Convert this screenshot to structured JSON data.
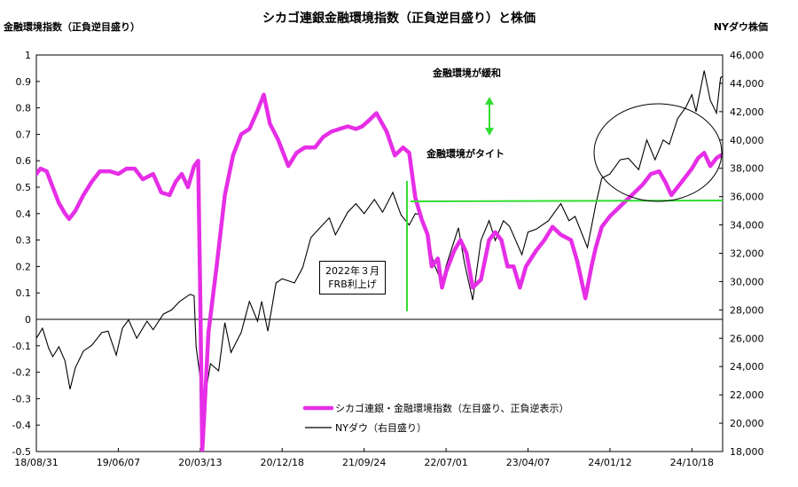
{
  "chart_data": {
    "type": "line",
    "title": "シカゴ連銀金融環境指数（正負逆目盛り）と株価",
    "ylabel": "金融環境指数（正負逆目盛り）",
    "y2label": "NYダウ株価",
    "x_ticks": [
      "18/08/31",
      "19/06/07",
      "20/03/13",
      "20/12/18",
      "21/09/24",
      "22/07/01",
      "23/04/07",
      "24/01/12",
      "24/10/18"
    ],
    "x_range": [
      "2018-08-31",
      "2025-01-31"
    ],
    "ylim": [
      -0.5,
      1
    ],
    "y_ticks": [
      -0.5,
      -0.4,
      -0.3,
      -0.2,
      -0.1,
      0,
      0.1,
      0.2,
      0.3,
      0.4,
      0.5,
      0.6,
      0.7,
      0.8,
      0.9,
      1
    ],
    "y_tick_labels": [
      "-0.5",
      "-0.4",
      "-0.3",
      "-0.2",
      "-0.1",
      "0",
      "0.1",
      "0.2",
      "0.3",
      "0.4",
      "0.5",
      "0.6",
      "0.7",
      "0.8",
      "0.9",
      "1"
    ],
    "y2lim": [
      18000,
      46000
    ],
    "y2_ticks": [
      18000,
      20000,
      22000,
      24000,
      26000,
      28000,
      30000,
      32000,
      34000,
      36000,
      38000,
      40000,
      42000,
      44000,
      46000
    ],
    "y2_tick_labels": [
      "18,000",
      "20,000",
      "22,000",
      "24,000",
      "26,000",
      "28,000",
      "30,000",
      "32,000",
      "34,000",
      "36,000",
      "38,000",
      "40,000",
      "42,000",
      "44,000",
      "46,000"
    ],
    "series": [
      {
        "name": "シカゴ連銀・金融環境指数（左目盛り、正負逆表示）",
        "color": "#e62ee6",
        "axis": "left",
        "points": [
          [
            "2018-08-31",
            0.55
          ],
          [
            "2018-09-14",
            0.57
          ],
          [
            "2018-10-05",
            0.56
          ],
          [
            "2018-10-26",
            0.5
          ],
          [
            "2018-11-16",
            0.44
          ],
          [
            "2018-12-07",
            0.4
          ],
          [
            "2018-12-21",
            0.38
          ],
          [
            "2019-01-11",
            0.41
          ],
          [
            "2019-02-08",
            0.47
          ],
          [
            "2019-03-08",
            0.52
          ],
          [
            "2019-04-05",
            0.56
          ],
          [
            "2019-05-10",
            0.56
          ],
          [
            "2019-06-07",
            0.55
          ],
          [
            "2019-07-05",
            0.57
          ],
          [
            "2019-08-02",
            0.57
          ],
          [
            "2019-08-30",
            0.53
          ],
          [
            "2019-10-04",
            0.55
          ],
          [
            "2019-11-01",
            0.48
          ],
          [
            "2019-11-29",
            0.47
          ],
          [
            "2019-12-20",
            0.52
          ],
          [
            "2020-01-10",
            0.55
          ],
          [
            "2020-01-31",
            0.5
          ],
          [
            "2020-02-21",
            0.58
          ],
          [
            "2020-03-06",
            0.6
          ],
          [
            "2020-03-13",
            0.1
          ],
          [
            "2020-03-20",
            -0.5
          ],
          [
            "2020-03-27",
            -0.35
          ],
          [
            "2020-04-10",
            -0.05
          ],
          [
            "2020-05-08",
            0.2
          ],
          [
            "2020-06-05",
            0.47
          ],
          [
            "2020-07-03",
            0.62
          ],
          [
            "2020-07-31",
            0.7
          ],
          [
            "2020-08-28",
            0.72
          ],
          [
            "2020-09-25",
            0.79
          ],
          [
            "2020-10-16",
            0.85
          ],
          [
            "2020-11-06",
            0.74
          ],
          [
            "2020-12-04",
            0.68
          ],
          [
            "2021-01-08",
            0.58
          ],
          [
            "2021-02-05",
            0.63
          ],
          [
            "2021-03-05",
            0.65
          ],
          [
            "2021-04-09",
            0.65
          ],
          [
            "2021-05-07",
            0.69
          ],
          [
            "2021-06-04",
            0.71
          ],
          [
            "2021-07-02",
            0.72
          ],
          [
            "2021-07-30",
            0.73
          ],
          [
            "2021-08-27",
            0.72
          ],
          [
            "2021-09-17",
            0.73
          ],
          [
            "2021-10-08",
            0.75
          ],
          [
            "2021-11-05",
            0.78
          ],
          [
            "2021-12-10",
            0.71
          ],
          [
            "2022-01-07",
            0.62
          ],
          [
            "2022-02-04",
            0.65
          ],
          [
            "2022-02-25",
            0.63
          ],
          [
            "2022-03-18",
            0.46
          ],
          [
            "2022-04-08",
            0.38
          ],
          [
            "2022-04-29",
            0.32
          ],
          [
            "2022-05-13",
            0.2
          ],
          [
            "2022-06-03",
            0.23
          ],
          [
            "2022-06-17",
            0.12
          ],
          [
            "2022-07-01",
            0.18
          ],
          [
            "2022-07-29",
            0.26
          ],
          [
            "2022-08-19",
            0.3
          ],
          [
            "2022-09-09",
            0.25
          ],
          [
            "2022-09-30",
            0.12
          ],
          [
            "2022-10-28",
            0.15
          ],
          [
            "2022-11-25",
            0.3
          ],
          [
            "2022-12-16",
            0.33
          ],
          [
            "2023-01-06",
            0.3
          ],
          [
            "2023-01-27",
            0.2
          ],
          [
            "2023-02-17",
            0.2
          ],
          [
            "2023-03-10",
            0.12
          ],
          [
            "2023-03-31",
            0.2
          ],
          [
            "2023-05-05",
            0.26
          ],
          [
            "2023-06-02",
            0.3
          ],
          [
            "2023-06-30",
            0.35
          ],
          [
            "2023-07-28",
            0.32
          ],
          [
            "2023-09-01",
            0.3
          ],
          [
            "2023-09-22",
            0.22
          ],
          [
            "2023-10-20",
            0.08
          ],
          [
            "2023-11-10",
            0.2
          ],
          [
            "2023-11-24",
            0.27
          ],
          [
            "2023-12-15",
            0.35
          ],
          [
            "2024-01-12",
            0.39
          ],
          [
            "2024-02-09",
            0.42
          ],
          [
            "2024-03-08",
            0.45
          ],
          [
            "2024-04-05",
            0.48
          ],
          [
            "2024-05-03",
            0.51
          ],
          [
            "2024-05-31",
            0.55
          ],
          [
            "2024-06-28",
            0.56
          ],
          [
            "2024-07-19",
            0.52
          ],
          [
            "2024-08-09",
            0.47
          ],
          [
            "2024-08-30",
            0.5
          ],
          [
            "2024-09-20",
            0.53
          ],
          [
            "2024-10-18",
            0.57
          ],
          [
            "2024-11-08",
            0.61
          ],
          [
            "2024-11-29",
            0.63
          ],
          [
            "2024-12-20",
            0.58
          ],
          [
            "2025-01-10",
            0.61
          ],
          [
            "2025-01-24",
            0.62
          ]
        ]
      },
      {
        "name": "NYダウ（右目盛り）",
        "color": "#000000",
        "axis": "right",
        "points": [
          [
            "2018-08-31",
            26000
          ],
          [
            "2018-09-21",
            26700
          ],
          [
            "2018-10-12",
            25300
          ],
          [
            "2018-10-26",
            24700
          ],
          [
            "2018-11-16",
            25400
          ],
          [
            "2018-12-07",
            24400
          ],
          [
            "2018-12-24",
            22400
          ],
          [
            "2019-01-11",
            23900
          ],
          [
            "2019-02-08",
            25100
          ],
          [
            "2019-03-08",
            25500
          ],
          [
            "2019-04-12",
            26400
          ],
          [
            "2019-05-03",
            26500
          ],
          [
            "2019-05-31",
            24800
          ],
          [
            "2019-06-21",
            26700
          ],
          [
            "2019-07-12",
            27300
          ],
          [
            "2019-08-09",
            26000
          ],
          [
            "2019-09-13",
            27200
          ],
          [
            "2019-10-04",
            26600
          ],
          [
            "2019-11-08",
            27700
          ],
          [
            "2019-12-06",
            28000
          ],
          [
            "2020-01-03",
            28600
          ],
          [
            "2020-02-07",
            29100
          ],
          [
            "2020-02-21",
            29000
          ],
          [
            "2020-02-28",
            25400
          ],
          [
            "2020-03-13",
            23200
          ],
          [
            "2020-03-20",
            19200
          ],
          [
            "2020-03-27",
            21600
          ],
          [
            "2020-04-17",
            24200
          ],
          [
            "2020-05-15",
            23700
          ],
          [
            "2020-06-05",
            27100
          ],
          [
            "2020-06-26",
            25000
          ],
          [
            "2020-07-31",
            26400
          ],
          [
            "2020-08-28",
            28600
          ],
          [
            "2020-09-25",
            27200
          ],
          [
            "2020-10-09",
            28600
          ],
          [
            "2020-10-30",
            26500
          ],
          [
            "2020-11-27",
            29900
          ],
          [
            "2020-12-18",
            30200
          ],
          [
            "2021-01-29",
            29900
          ],
          [
            "2021-02-26",
            31000
          ],
          [
            "2021-03-26",
            33100
          ],
          [
            "2021-04-30",
            33900
          ],
          [
            "2021-05-28",
            34500
          ],
          [
            "2021-06-18",
            33300
          ],
          [
            "2021-07-30",
            34900
          ],
          [
            "2021-08-27",
            35500
          ],
          [
            "2021-09-24",
            34800
          ],
          [
            "2021-10-29",
            35800
          ],
          [
            "2021-11-26",
            34900
          ],
          [
            "2021-12-31",
            36300
          ],
          [
            "2022-01-28",
            34700
          ],
          [
            "2022-02-25",
            34000
          ],
          [
            "2022-03-18",
            34800
          ],
          [
            "2022-04-08",
            34700
          ],
          [
            "2022-04-29",
            33000
          ],
          [
            "2022-05-20",
            31300
          ],
          [
            "2022-06-17",
            29900
          ],
          [
            "2022-07-01",
            31100
          ],
          [
            "2022-08-12",
            33800
          ],
          [
            "2022-09-02",
            31300
          ],
          [
            "2022-09-30",
            28700
          ],
          [
            "2022-10-28",
            32900
          ],
          [
            "2022-11-25",
            34300
          ],
          [
            "2022-12-16",
            32900
          ],
          [
            "2023-01-13",
            34300
          ],
          [
            "2023-02-03",
            33900
          ],
          [
            "2023-03-17",
            31900
          ],
          [
            "2023-04-07",
            33500
          ],
          [
            "2023-05-05",
            33700
          ],
          [
            "2023-06-16",
            34300
          ],
          [
            "2023-07-28",
            35500
          ],
          [
            "2023-08-25",
            34300
          ],
          [
            "2023-09-15",
            34600
          ],
          [
            "2023-10-27",
            32400
          ],
          [
            "2023-11-24",
            35400
          ],
          [
            "2023-12-15",
            37300
          ],
          [
            "2024-01-12",
            37600
          ],
          [
            "2024-02-16",
            38600
          ],
          [
            "2024-03-15",
            38700
          ],
          [
            "2024-04-19",
            37900
          ],
          [
            "2024-05-17",
            40000
          ],
          [
            "2024-06-14",
            38600
          ],
          [
            "2024-07-12",
            40000
          ],
          [
            "2024-08-02",
            39700
          ],
          [
            "2024-08-30",
            41500
          ],
          [
            "2024-09-27",
            42300
          ],
          [
            "2024-10-18",
            43200
          ],
          [
            "2024-11-01",
            42000
          ],
          [
            "2024-11-29",
            44900
          ],
          [
            "2024-12-20",
            42800
          ],
          [
            "2025-01-10",
            41900
          ],
          [
            "2025-01-24",
            44400
          ],
          [
            "2025-01-31",
            44500
          ]
        ]
      }
    ],
    "annotations": {
      "easing": "金融環境が緩和",
      "tightening": "金融環境がタイト",
      "frb_line1": "2022年３月",
      "frb_line2": "FRB利上げ"
    },
    "legend_position": "bottom-center",
    "grid": false
  }
}
